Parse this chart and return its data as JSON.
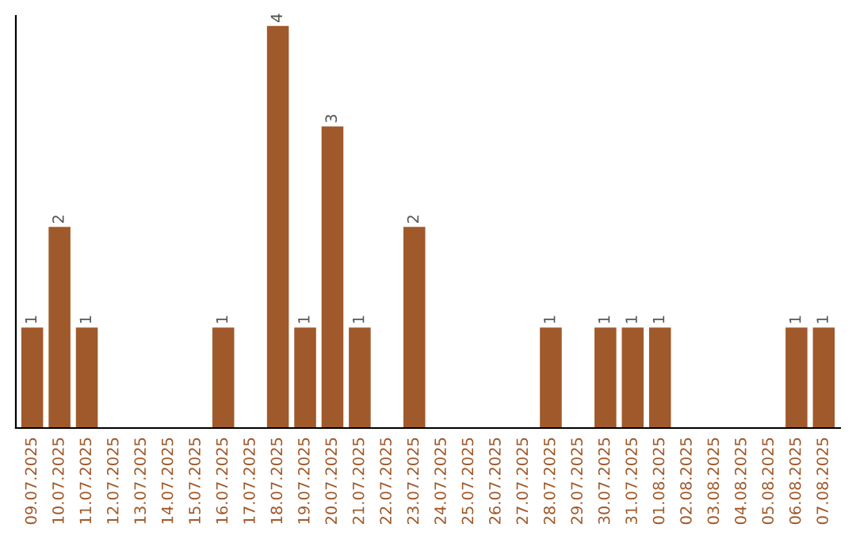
{
  "chart_data": {
    "type": "bar",
    "categories": [
      "09.07.2025",
      "10.07.2025",
      "11.07.2025",
      "12.07.2025",
      "13.07.2025",
      "14.07.2025",
      "15.07.2025",
      "16.07.2025",
      "17.07.2025",
      "18.07.2025",
      "19.07.2025",
      "20.07.2025",
      "21.07.2025",
      "22.07.2025",
      "23.07.2025",
      "24.07.2025",
      "25.07.2025",
      "26.07.2025",
      "27.07.2025",
      "28.07.2025",
      "29.07.2025",
      "30.07.2025",
      "31.07.2025",
      "01.08.2025",
      "02.08.2025",
      "03.08.2025",
      "04.08.2025",
      "05.08.2025",
      "06.08.2025",
      "07.08.2025"
    ],
    "values": [
      1,
      2,
      1,
      0,
      0,
      0,
      0,
      1,
      0,
      4,
      1,
      3,
      1,
      0,
      2,
      0,
      0,
      0,
      0,
      1,
      0,
      1,
      1,
      1,
      0,
      0,
      0,
      0,
      1,
      1
    ],
    "value_labels": [
      "1",
      "2",
      "1",
      null,
      null,
      null,
      null,
      "1",
      null,
      "4",
      "1",
      "3",
      "1",
      null,
      "2",
      null,
      null,
      null,
      null,
      "1",
      null,
      "1",
      "1",
      "1",
      null,
      null,
      null,
      null,
      "1",
      "1"
    ],
    "color": "#a0592a",
    "ylim": [
      0,
      4.1
    ],
    "tick_labels": "x",
    "grid": false,
    "legend": false
  }
}
